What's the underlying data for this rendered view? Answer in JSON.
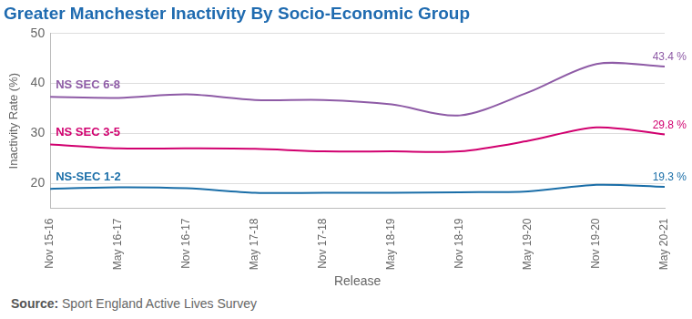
{
  "chart_data": {
    "type": "line",
    "title": "Greater Manchester Inactivity By Socio-Economic Group",
    "x_label": "Release",
    "y_label": "Inactivity Rate (%)",
    "source": "Source: Sport England Active Lives Survey",
    "categories": [
      "Nov 15-16",
      "May 16-17",
      "Nov 16-17",
      "May 17-18",
      "Nov 17-18",
      "May 18-19",
      "Nov 18-19",
      "May 19-20",
      "Nov 19-20",
      "May 20-21"
    ],
    "series": [
      {
        "name": "NS SEC 6-8",
        "color": "#8e5ba6",
        "values": [
          37.3,
          37.1,
          37.8,
          36.7,
          36.7,
          35.8,
          33.6,
          38.2,
          43.9,
          43.4
        ],
        "value_labels": [
          null,
          null,
          null,
          null,
          null,
          null,
          null,
          null,
          null,
          "43.4 %"
        ]
      },
      {
        "name": "NS SEC 3-5",
        "color": "#d1006f",
        "values": [
          27.8,
          27.0,
          27.0,
          26.9,
          26.4,
          26.4,
          26.4,
          28.5,
          31.2,
          29.8
        ],
        "value_labels": [
          null,
          null,
          null,
          null,
          null,
          null,
          null,
          null,
          null,
          "29.8 %"
        ]
      },
      {
        "name": "NS-SEC 1-2",
        "color": "#1a6ea8",
        "values": [
          18.9,
          19.2,
          19.0,
          18.1,
          18.1,
          18.1,
          18.2,
          18.4,
          19.7,
          19.3
        ],
        "value_labels": [
          null,
          null,
          null,
          null,
          null,
          null,
          null,
          null,
          null,
          "19.3 %"
        ]
      }
    ],
    "ylim": [
      15,
      50
    ],
    "yticks": [
      20,
      30,
      40,
      50
    ],
    "grid": true,
    "marker": "none"
  }
}
